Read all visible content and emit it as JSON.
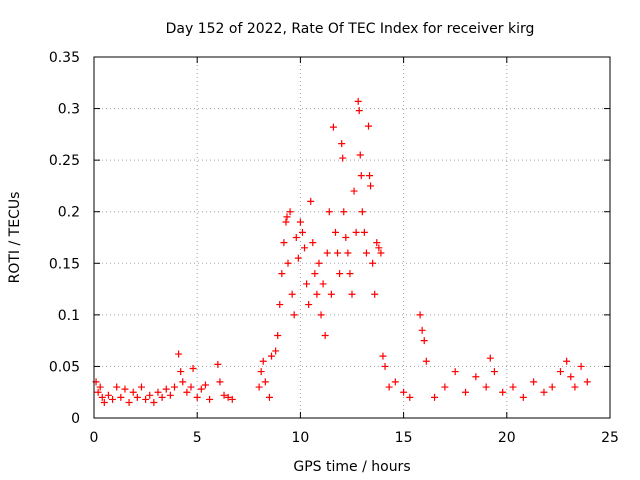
{
  "chart_data": {
    "type": "scatter",
    "title": "Day 152 of 2022, Rate Of TEC Index for receiver kirg",
    "xlabel": "GPS time / hours",
    "ylabel": "ROTI / TECUs",
    "xlim": [
      0,
      25
    ],
    "ylim": [
      0,
      0.35
    ],
    "xticks": [
      "0",
      "5",
      "10",
      "15",
      "20",
      "25"
    ],
    "yticks": [
      "0",
      "0.05",
      "0.1",
      "0.15",
      "0.2",
      "0.25",
      "0.3",
      "0.35"
    ],
    "grid": true,
    "marker": "+",
    "color": "#ff0000",
    "series": [
      {
        "name": "ROTI",
        "points": [
          [
            0.1,
            0.035
          ],
          [
            0.2,
            0.025
          ],
          [
            0.3,
            0.03
          ],
          [
            0.4,
            0.02
          ],
          [
            0.5,
            0.015
          ],
          [
            0.7,
            0.022
          ],
          [
            0.9,
            0.018
          ],
          [
            1.1,
            0.03
          ],
          [
            1.3,
            0.02
          ],
          [
            1.5,
            0.028
          ],
          [
            1.7,
            0.015
          ],
          [
            1.9,
            0.025
          ],
          [
            2.1,
            0.02
          ],
          [
            2.3,
            0.03
          ],
          [
            2.5,
            0.018
          ],
          [
            2.7,
            0.022
          ],
          [
            2.9,
            0.015
          ],
          [
            3.1,
            0.025
          ],
          [
            3.3,
            0.02
          ],
          [
            3.5,
            0.028
          ],
          [
            3.7,
            0.022
          ],
          [
            3.9,
            0.03
          ],
          [
            4.1,
            0.062
          ],
          [
            4.2,
            0.045
          ],
          [
            4.3,
            0.035
          ],
          [
            4.5,
            0.025
          ],
          [
            4.7,
            0.03
          ],
          [
            4.8,
            0.048
          ],
          [
            5.0,
            0.02
          ],
          [
            5.2,
            0.028
          ],
          [
            5.4,
            0.032
          ],
          [
            5.6,
            0.018
          ],
          [
            6.0,
            0.052
          ],
          [
            6.1,
            0.035
          ],
          [
            6.3,
            0.022
          ],
          [
            6.5,
            0.02
          ],
          [
            6.7,
            0.018
          ],
          [
            8.0,
            0.03
          ],
          [
            8.1,
            0.045
          ],
          [
            8.2,
            0.055
          ],
          [
            8.3,
            0.035
          ],
          [
            8.5,
            0.02
          ],
          [
            8.6,
            0.06
          ],
          [
            8.8,
            0.065
          ],
          [
            8.9,
            0.08
          ],
          [
            9.0,
            0.11
          ],
          [
            9.1,
            0.14
          ],
          [
            9.2,
            0.17
          ],
          [
            9.3,
            0.19
          ],
          [
            9.35,
            0.195
          ],
          [
            9.4,
            0.15
          ],
          [
            9.5,
            0.2
          ],
          [
            9.6,
            0.12
          ],
          [
            9.7,
            0.1
          ],
          [
            9.8,
            0.175
          ],
          [
            9.9,
            0.155
          ],
          [
            10.0,
            0.19
          ],
          [
            10.1,
            0.18
          ],
          [
            10.2,
            0.165
          ],
          [
            10.3,
            0.13
          ],
          [
            10.4,
            0.11
          ],
          [
            10.5,
            0.21
          ],
          [
            10.6,
            0.17
          ],
          [
            10.7,
            0.14
          ],
          [
            10.8,
            0.12
          ],
          [
            10.9,
            0.15
          ],
          [
            11.0,
            0.1
          ],
          [
            11.1,
            0.13
          ],
          [
            11.2,
            0.08
          ],
          [
            11.3,
            0.16
          ],
          [
            11.4,
            0.2
          ],
          [
            11.5,
            0.12
          ],
          [
            11.6,
            0.282
          ],
          [
            11.7,
            0.18
          ],
          [
            11.8,
            0.16
          ],
          [
            11.9,
            0.14
          ],
          [
            12.0,
            0.266
          ],
          [
            12.05,
            0.252
          ],
          [
            12.1,
            0.2
          ],
          [
            12.2,
            0.175
          ],
          [
            12.3,
            0.16
          ],
          [
            12.4,
            0.14
          ],
          [
            12.5,
            0.12
          ],
          [
            12.6,
            0.22
          ],
          [
            12.7,
            0.18
          ],
          [
            12.8,
            0.307
          ],
          [
            12.85,
            0.298
          ],
          [
            12.9,
            0.255
          ],
          [
            12.95,
            0.235
          ],
          [
            13.0,
            0.2
          ],
          [
            13.1,
            0.18
          ],
          [
            13.2,
            0.16
          ],
          [
            13.3,
            0.283
          ],
          [
            13.35,
            0.235
          ],
          [
            13.4,
            0.225
          ],
          [
            13.5,
            0.15
          ],
          [
            13.6,
            0.12
          ],
          [
            13.7,
            0.17
          ],
          [
            13.8,
            0.165
          ],
          [
            13.9,
            0.16
          ],
          [
            14.0,
            0.06
          ],
          [
            14.1,
            0.05
          ],
          [
            14.3,
            0.03
          ],
          [
            14.6,
            0.035
          ],
          [
            15.0,
            0.025
          ],
          [
            15.3,
            0.02
          ],
          [
            15.8,
            0.1
          ],
          [
            15.9,
            0.085
          ],
          [
            16.0,
            0.075
          ],
          [
            16.1,
            0.055
          ],
          [
            16.5,
            0.02
          ],
          [
            17.0,
            0.03
          ],
          [
            17.5,
            0.045
          ],
          [
            18.0,
            0.025
          ],
          [
            18.5,
            0.04
          ],
          [
            19.0,
            0.03
          ],
          [
            19.2,
            0.058
          ],
          [
            19.4,
            0.045
          ],
          [
            19.8,
            0.025
          ],
          [
            20.3,
            0.03
          ],
          [
            20.8,
            0.02
          ],
          [
            21.3,
            0.035
          ],
          [
            21.8,
            0.025
          ],
          [
            22.2,
            0.03
          ],
          [
            22.6,
            0.045
          ],
          [
            22.9,
            0.055
          ],
          [
            23.1,
            0.04
          ],
          [
            23.3,
            0.03
          ],
          [
            23.6,
            0.05
          ],
          [
            23.9,
            0.035
          ]
        ]
      }
    ]
  }
}
